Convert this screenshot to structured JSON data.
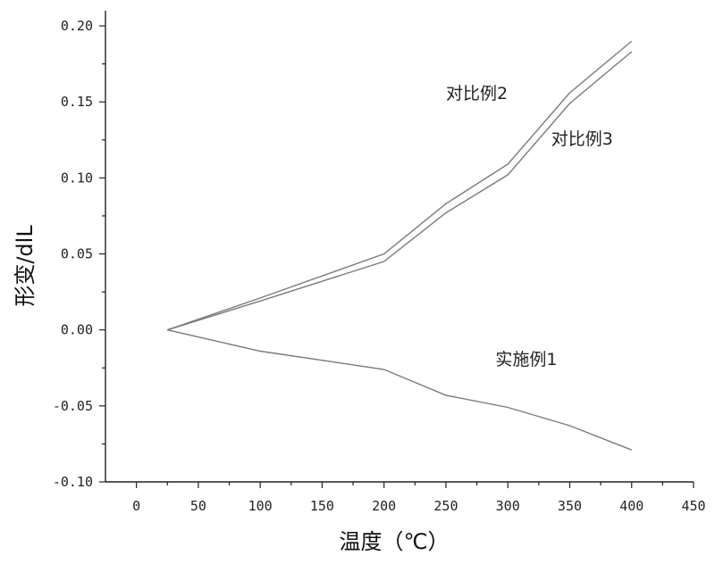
{
  "chart_data": {
    "type": "line",
    "xlabel": "温度（℃）",
    "ylabel": "形变/dlL",
    "xlim": [
      -25,
      450
    ],
    "ylim": [
      -0.1,
      0.21
    ],
    "x_ticks": [
      "0",
      "50",
      "100",
      "150",
      "200",
      "250",
      "300",
      "350",
      "400",
      "450"
    ],
    "y_ticks": [
      "-0.10",
      "-0.05",
      "0.00",
      "0.05",
      "0.10",
      "0.15",
      "0.20"
    ],
    "grid": false,
    "series": [
      {
        "name": "对比例2",
        "x": [
          25,
          100,
          200,
          250,
          300,
          350,
          400
        ],
        "y": [
          0.0,
          0.021,
          0.05,
          0.083,
          0.109,
          0.156,
          0.19
        ]
      },
      {
        "name": "对比例3",
        "x": [
          25,
          100,
          200,
          250,
          300,
          350,
          400
        ],
        "y": [
          0.0,
          0.019,
          0.045,
          0.077,
          0.102,
          0.149,
          0.183
        ]
      },
      {
        "name": "实施例1",
        "x": [
          25,
          100,
          200,
          250,
          300,
          350,
          400
        ],
        "y": [
          0.0,
          -0.014,
          -0.026,
          -0.043,
          -0.051,
          -0.063,
          -0.079
        ]
      }
    ]
  }
}
